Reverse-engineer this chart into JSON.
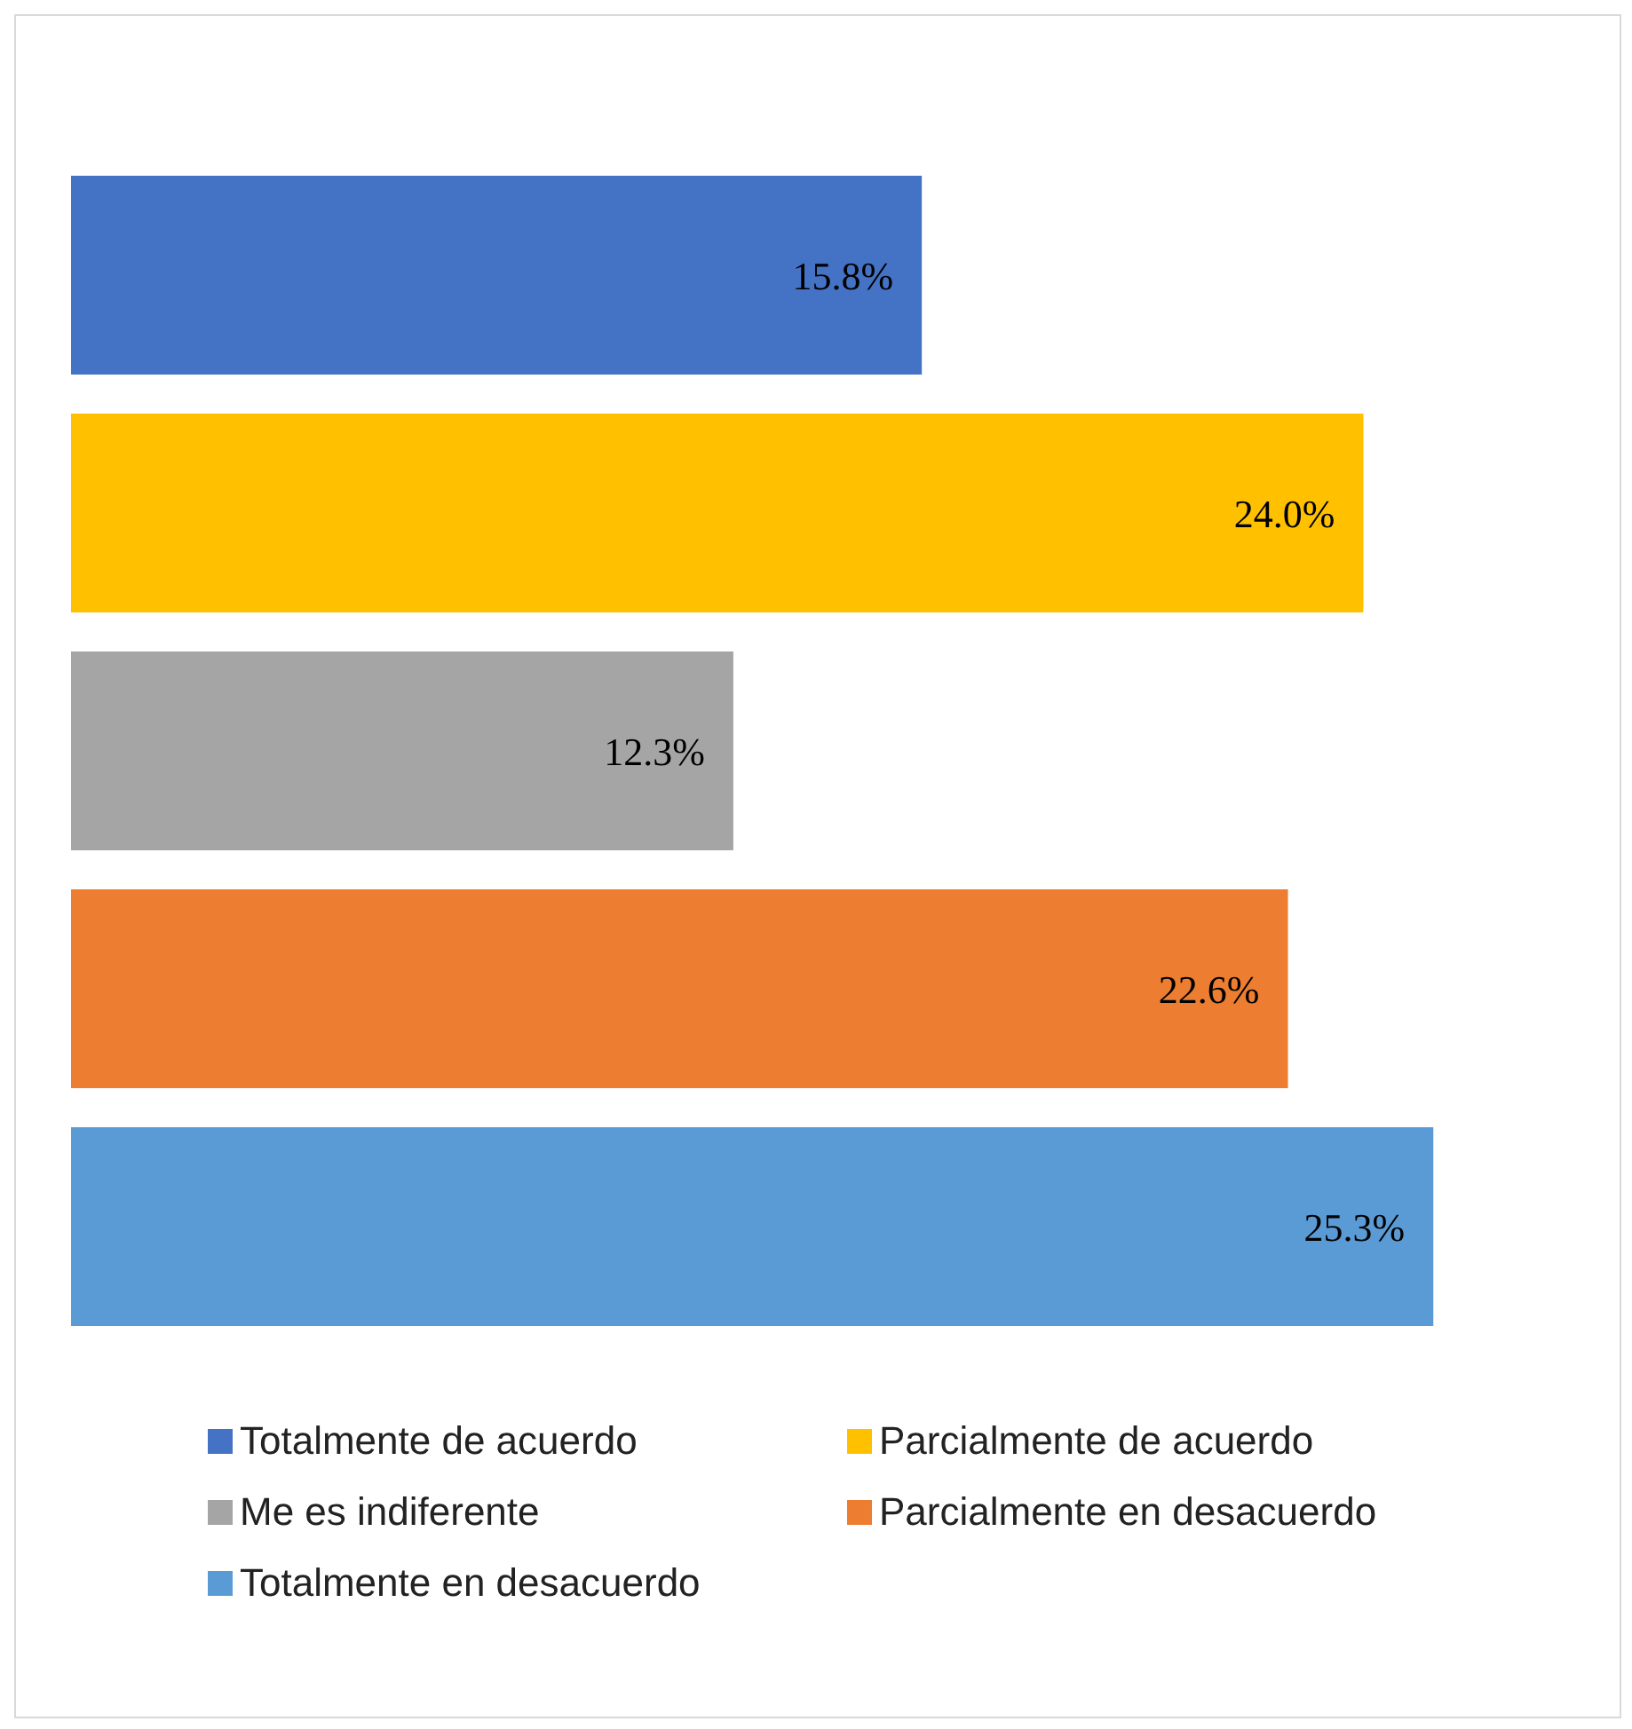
{
  "chart_data": {
    "type": "bar",
    "orientation": "horizontal",
    "categories": [
      null
    ],
    "legend": "bottom",
    "series": [
      {
        "name": "Totalmente de acuerdo",
        "color": "#4472c4",
        "values": [
          15.8
        ],
        "value_labels": [
          "15.8%"
        ]
      },
      {
        "name": "Parcialmente de acuerdo",
        "color": "#ffc000",
        "values": [
          24.0
        ],
        "value_labels": [
          "24.0%"
        ]
      },
      {
        "name": "Me es indiferente",
        "color": "#a5a5a5",
        "values": [
          12.3
        ],
        "value_labels": [
          "12.3%"
        ]
      },
      {
        "name": "Parcialmente en desacuerdo",
        "color": "#ed7d31",
        "values": [
          22.6
        ],
        "value_labels": [
          "22.6%"
        ]
      },
      {
        "name": "Totalmente en desacuerdo",
        "color": "#5b9bd5",
        "values": [
          25.3
        ],
        "value_labels": [
          "25.3%"
        ]
      }
    ]
  }
}
